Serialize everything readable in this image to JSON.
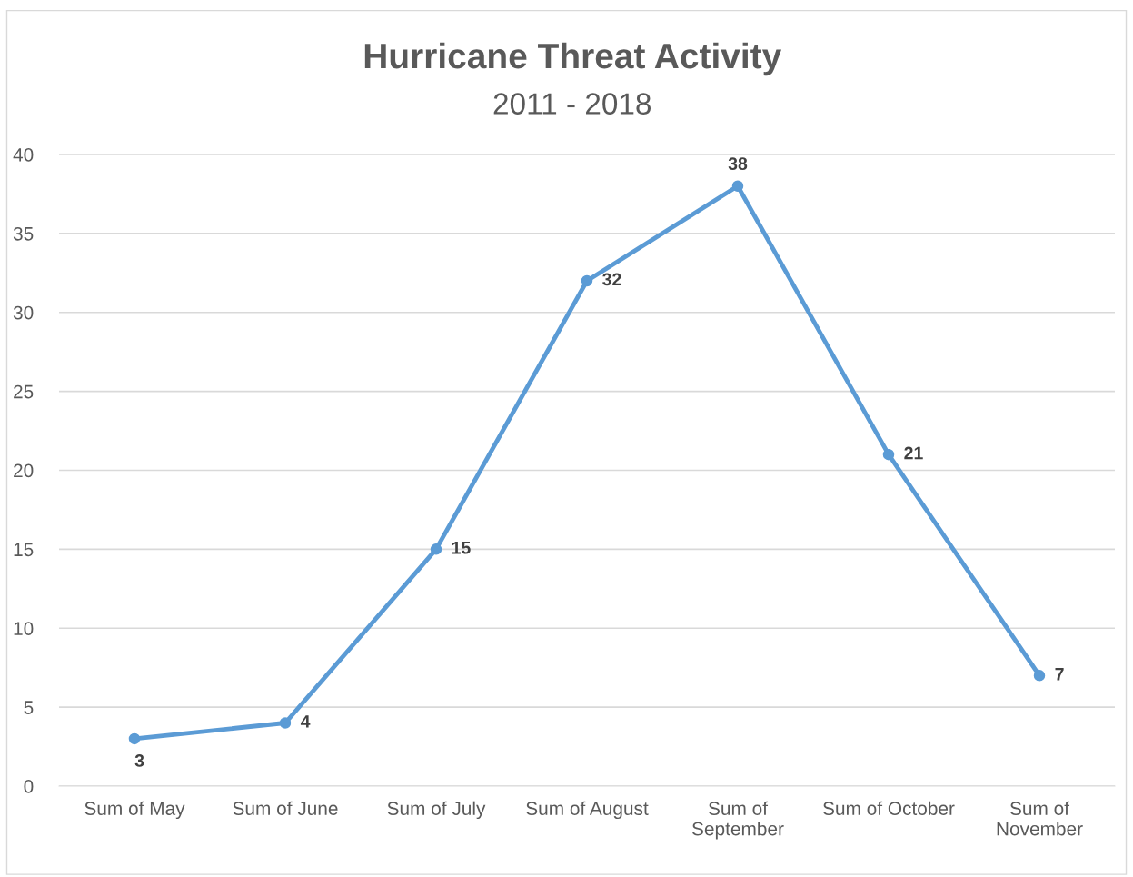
{
  "chart_data": {
    "type": "line",
    "title": "Hurricane Threat Activity",
    "subtitle": "2011 - 2018",
    "categories": [
      "Sum of May",
      "Sum of June",
      "Sum of July",
      "Sum of August",
      "Sum of\nSeptember",
      "Sum of October",
      "Sum of\nNovember"
    ],
    "series": [
      {
        "color": "#5b9bd5",
        "values": [
          3,
          4,
          15,
          32,
          38,
          21,
          7
        ]
      }
    ],
    "ylim": [
      0,
      40
    ],
    "yticks": [
      0,
      5,
      10,
      15,
      20,
      25,
      30,
      35,
      40
    ],
    "grid": "y",
    "marker": "circle",
    "line_style": "solid",
    "data_labels": true,
    "legend": false
  }
}
